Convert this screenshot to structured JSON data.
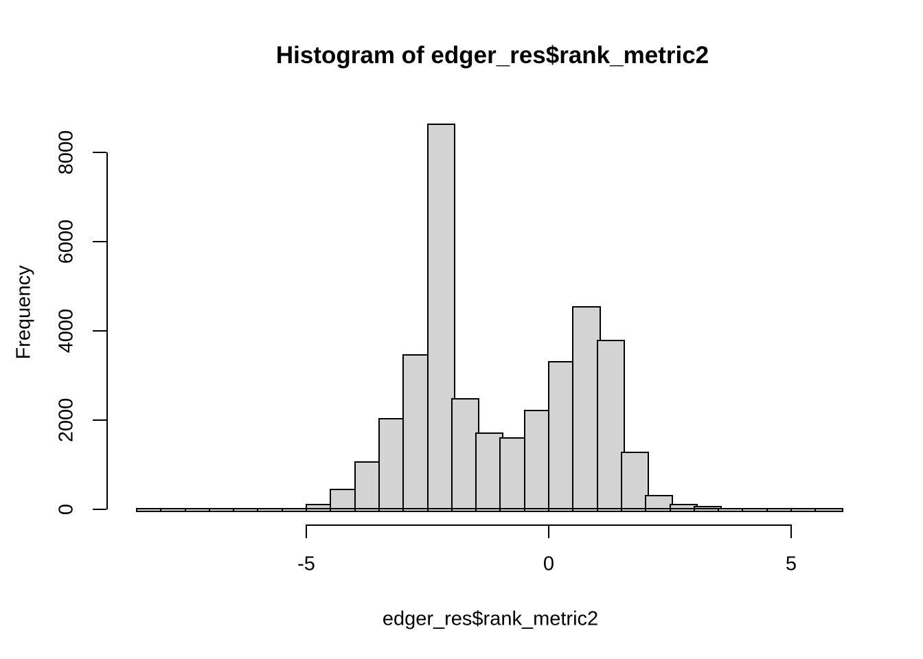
{
  "chart": {
    "title": "Histogram of edger_res$rank_metric2",
    "xlabel": "edger_res$rank_metric2",
    "ylabel": "Frequency"
  },
  "chart_data": {
    "type": "histogram",
    "title": "Histogram of edger_res$rank_metric2",
    "xlabel": "edger_res$rank_metric2",
    "ylabel": "Frequency",
    "bin_start": -8.5,
    "bin_width": 0.5,
    "bins": [
      {
        "from": -8.5,
        "to": -8.0,
        "count": 2
      },
      {
        "from": -8.0,
        "to": -7.5,
        "count": 2
      },
      {
        "from": -7.5,
        "to": -7.0,
        "count": 3
      },
      {
        "from": -7.0,
        "to": -6.5,
        "count": 5
      },
      {
        "from": -6.5,
        "to": -6.0,
        "count": 8
      },
      {
        "from": -6.0,
        "to": -5.5,
        "count": 15
      },
      {
        "from": -5.5,
        "to": -5.0,
        "count": 30
      },
      {
        "from": -5.0,
        "to": -4.5,
        "count": 120
      },
      {
        "from": -4.5,
        "to": -4.0,
        "count": 460
      },
      {
        "from": -4.0,
        "to": -3.5,
        "count": 1070
      },
      {
        "from": -3.5,
        "to": -3.0,
        "count": 2050
      },
      {
        "from": -3.0,
        "to": -2.5,
        "count": 3480
      },
      {
        "from": -2.5,
        "to": -2.0,
        "count": 8650
      },
      {
        "from": -2.0,
        "to": -1.5,
        "count": 2500
      },
      {
        "from": -1.5,
        "to": -1.0,
        "count": 1720
      },
      {
        "from": -1.0,
        "to": -0.5,
        "count": 1610
      },
      {
        "from": -0.5,
        "to": 0.0,
        "count": 2230
      },
      {
        "from": 0.0,
        "to": 0.5,
        "count": 3330
      },
      {
        "from": 0.5,
        "to": 1.0,
        "count": 4550
      },
      {
        "from": 1.0,
        "to": 1.5,
        "count": 3800
      },
      {
        "from": 1.5,
        "to": 2.0,
        "count": 1300
      },
      {
        "from": 2.0,
        "to": 2.5,
        "count": 320
      },
      {
        "from": 2.5,
        "to": 3.0,
        "count": 130
      },
      {
        "from": 3.0,
        "to": 3.5,
        "count": 70
      },
      {
        "from": 3.5,
        "to": 4.0,
        "count": 30
      },
      {
        "from": 4.0,
        "to": 4.5,
        "count": 18
      },
      {
        "from": 4.5,
        "to": 5.0,
        "count": 12
      },
      {
        "from": 5.0,
        "to": 5.5,
        "count": 6
      },
      {
        "from": 5.5,
        "to": 6.0,
        "count": 3
      }
    ],
    "x_ticks": [
      -5,
      0,
      5
    ],
    "x_tick_labels": [
      "-5",
      "0",
      "5"
    ],
    "y_ticks": [
      0,
      2000,
      4000,
      6000,
      8000
    ],
    "y_tick_labels": [
      "0",
      "2000",
      "4000",
      "6000",
      "8000"
    ],
    "xlim": [
      -8.5,
      6.0
    ],
    "ylim": [
      0,
      8650
    ],
    "grid": false,
    "legend": null,
    "bar_fill": "#D3D3D3",
    "bar_border": "#000000",
    "text_color": "#000000",
    "background": "#FFFFFF"
  }
}
